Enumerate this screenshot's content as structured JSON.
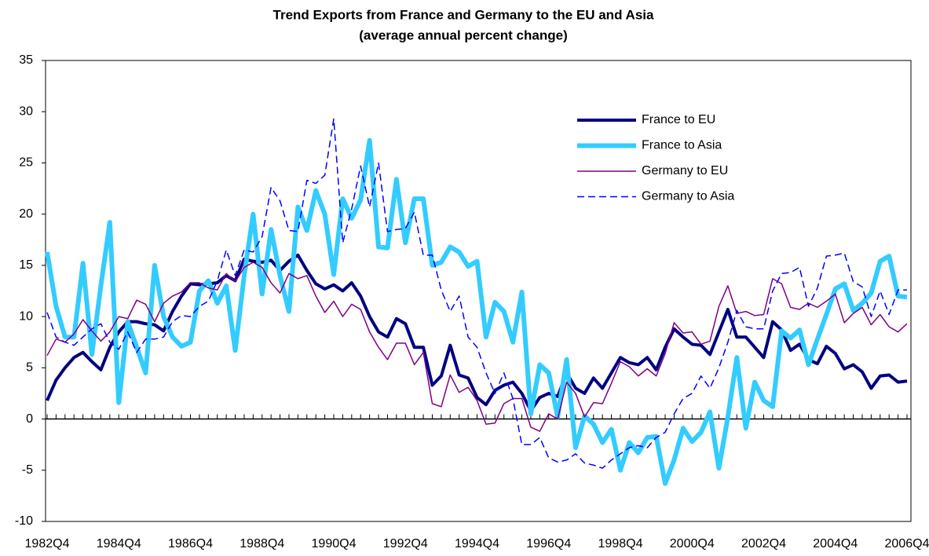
{
  "chart_data": {
    "type": "line",
    "title": "Trend Exports from France and Germany to the EU and Asia",
    "subtitle": "(average annual percent change)",
    "categories": [
      "1982Q4",
      null,
      null,
      null,
      null,
      null,
      null,
      null,
      "1984Q4",
      null,
      null,
      null,
      null,
      null,
      null,
      null,
      "1986Q4",
      null,
      null,
      null,
      null,
      null,
      null,
      null,
      "1988Q4",
      null,
      null,
      null,
      null,
      null,
      null,
      null,
      "1990Q4",
      null,
      null,
      null,
      null,
      null,
      null,
      null,
      "1992Q4",
      null,
      null,
      null,
      null,
      null,
      null,
      null,
      "1994Q4",
      null,
      null,
      null,
      null,
      null,
      null,
      null,
      "1996Q4",
      null,
      null,
      null,
      null,
      null,
      null,
      null,
      "1998Q4",
      null,
      null,
      null,
      null,
      null,
      null,
      null,
      "2000Q4",
      null,
      null,
      null,
      null,
      null,
      null,
      null,
      "2002Q4",
      null,
      null,
      null,
      null,
      null,
      null,
      null,
      "2004Q4",
      null,
      null,
      null,
      null,
      null,
      null,
      null,
      "2006Q4"
    ],
    "series": [
      {
        "name": "France to EU",
        "color": "#000080",
        "width": 4,
        "dashed": false,
        "values": [
          1.8,
          3.8,
          5,
          6,
          6.5,
          5.6,
          4.8,
          7,
          8.5,
          9.5,
          9.5,
          9.3,
          9.2,
          8.6,
          10.5,
          12,
          13.2,
          13.1,
          13.2,
          13.3,
          14,
          13.5,
          15.6,
          15.4,
          15.3,
          15.5,
          14.5,
          15.4,
          16,
          14.5,
          13.2,
          12.7,
          13.1,
          12.5,
          13.3,
          12,
          10,
          8.5,
          8,
          9.8,
          9.3,
          7,
          7,
          3.3,
          4.2,
          7.2,
          4.3,
          4,
          2.1,
          1.4,
          2.8,
          3.3,
          3.6,
          2.5,
          0.8,
          2.1,
          2.5,
          2.2,
          4.5,
          3,
          2.5,
          4,
          3,
          4.5,
          6,
          5.5,
          5.3,
          6,
          4.8,
          7,
          8.8,
          8,
          7.3,
          7.2,
          6.3,
          8.5,
          10.7,
          8,
          8,
          7,
          6,
          9.5,
          8.7,
          6.7,
          7.3,
          5.8,
          5.4,
          7.1,
          6.4,
          4.9,
          5.3,
          4.6,
          3,
          4.2,
          4.3,
          3.6,
          3.7
        ]
      },
      {
        "name": "France to Asia",
        "color": "#33ccff",
        "width": 6,
        "dashed": false,
        "values": [
          16.3,
          11,
          8,
          8,
          15.2,
          6.3,
          13,
          19.2,
          1.6,
          9.5,
          7,
          4.5,
          15,
          10,
          8,
          7.1,
          7.5,
          12.5,
          13.5,
          11.3,
          13,
          6.7,
          14,
          20,
          12.2,
          18.5,
          14,
          10.5,
          20.7,
          18.4,
          22.3,
          20,
          14.1,
          21.5,
          19.6,
          21.4,
          27.2,
          16.8,
          16.7,
          23.4,
          17.2,
          21.5,
          21.5,
          15,
          15.3,
          16.8,
          16.3,
          14.9,
          15.4,
          8,
          11.4,
          10.5,
          7.5,
          12.4,
          0.5,
          5.3,
          4.5,
          0.2,
          5.8,
          -2.8,
          0.3,
          -0.5,
          -2.3,
          -1,
          -5,
          -2.3,
          -3.3,
          -1.8,
          -1.7,
          -6.3,
          -4,
          -0.9,
          -2.2,
          -1.3,
          0.7,
          -4.8,
          0.2,
          6,
          -0.9,
          3.6,
          1.8,
          1.2,
          8.6,
          7.9,
          8.7,
          5.3,
          7.8,
          10.2,
          12.7,
          13.2,
          10.6,
          11.3,
          12.3,
          15.4,
          15.9,
          12,
          11.9
        ]
      },
      {
        "name": "Germany to EU",
        "color": "#800080",
        "width": 1.5,
        "dashed": false,
        "values": [
          6.2,
          7.8,
          7.5,
          8.3,
          9.7,
          8.6,
          7.6,
          8.5,
          10,
          9.8,
          11.6,
          11.2,
          9.5,
          11.3,
          12,
          12.4,
          13.3,
          13.3,
          12.8,
          12.6,
          14.2,
          13.4,
          14.8,
          15.3,
          14.8,
          13.3,
          12.3,
          14.2,
          13.7,
          14,
          12,
          10.4,
          11.5,
          10,
          11.2,
          10.7,
          8.5,
          7,
          5.8,
          7.4,
          7.4,
          5.3,
          6.5,
          1.5,
          1.2,
          4.3,
          2.6,
          3.1,
          1.8,
          -0.5,
          -0.4,
          1.5,
          2,
          2,
          -0.8,
          -1.2,
          0.5,
          0,
          3.6,
          2.5,
          0.2,
          1.6,
          1.5,
          3.5,
          5.6,
          5.1,
          4.2,
          4.9,
          4.2,
          6.4,
          9.4,
          8.4,
          8.5,
          7.3,
          7.6,
          11,
          13,
          10.3,
          10.5,
          10.1,
          10.2,
          13.7,
          13.2,
          10.9,
          10.7,
          11.3,
          10.9,
          11.5,
          12.2,
          9.4,
          10.3,
          10.9,
          9.2,
          10.2,
          9,
          8.5,
          9.3
        ]
      },
      {
        "name": "Germany to  Asia",
        "color": "#0000ff",
        "width": 1.5,
        "dashed": true,
        "values": [
          10.4,
          8,
          7.5,
          7.2,
          8,
          8.8,
          9.3,
          7.5,
          6.8,
          8.5,
          6.5,
          7.8,
          7.8,
          8,
          9.5,
          10.1,
          10,
          11,
          11.5,
          13.5,
          16.5,
          14,
          16.5,
          16.3,
          17.8,
          22.6,
          21.3,
          18.4,
          18.3,
          23.3,
          23,
          23.8,
          29.3,
          17.2,
          20.5,
          24.7,
          20.7,
          25,
          18.3,
          18.5,
          18.6,
          20.2,
          16,
          16,
          12.6,
          10.5,
          12,
          8,
          7,
          4.5,
          2.5,
          4.5,
          2,
          -2.5,
          -2.5,
          -1.8,
          -3.8,
          -4.2,
          -4,
          -3.4,
          -4.3,
          -4.5,
          -4.8,
          -4,
          -3.4,
          -2.8,
          -2.6,
          -2.8,
          -1.8,
          -1.3,
          0.5,
          2,
          2.5,
          4.2,
          3,
          5,
          7.5,
          10.6,
          9,
          8.8,
          8.8,
          12.5,
          14.2,
          14.3,
          14.8,
          11,
          12.8,
          15.9,
          16,
          16.2,
          13.4,
          12.9,
          10,
          12.5,
          10.2,
          12.6,
          12.6
        ]
      }
    ],
    "ylim": [
      -10,
      35
    ],
    "yticks": [
      -10,
      -5,
      0,
      5,
      10,
      15,
      20,
      25,
      30,
      35
    ],
    "grid": false,
    "legend": "upper right"
  }
}
